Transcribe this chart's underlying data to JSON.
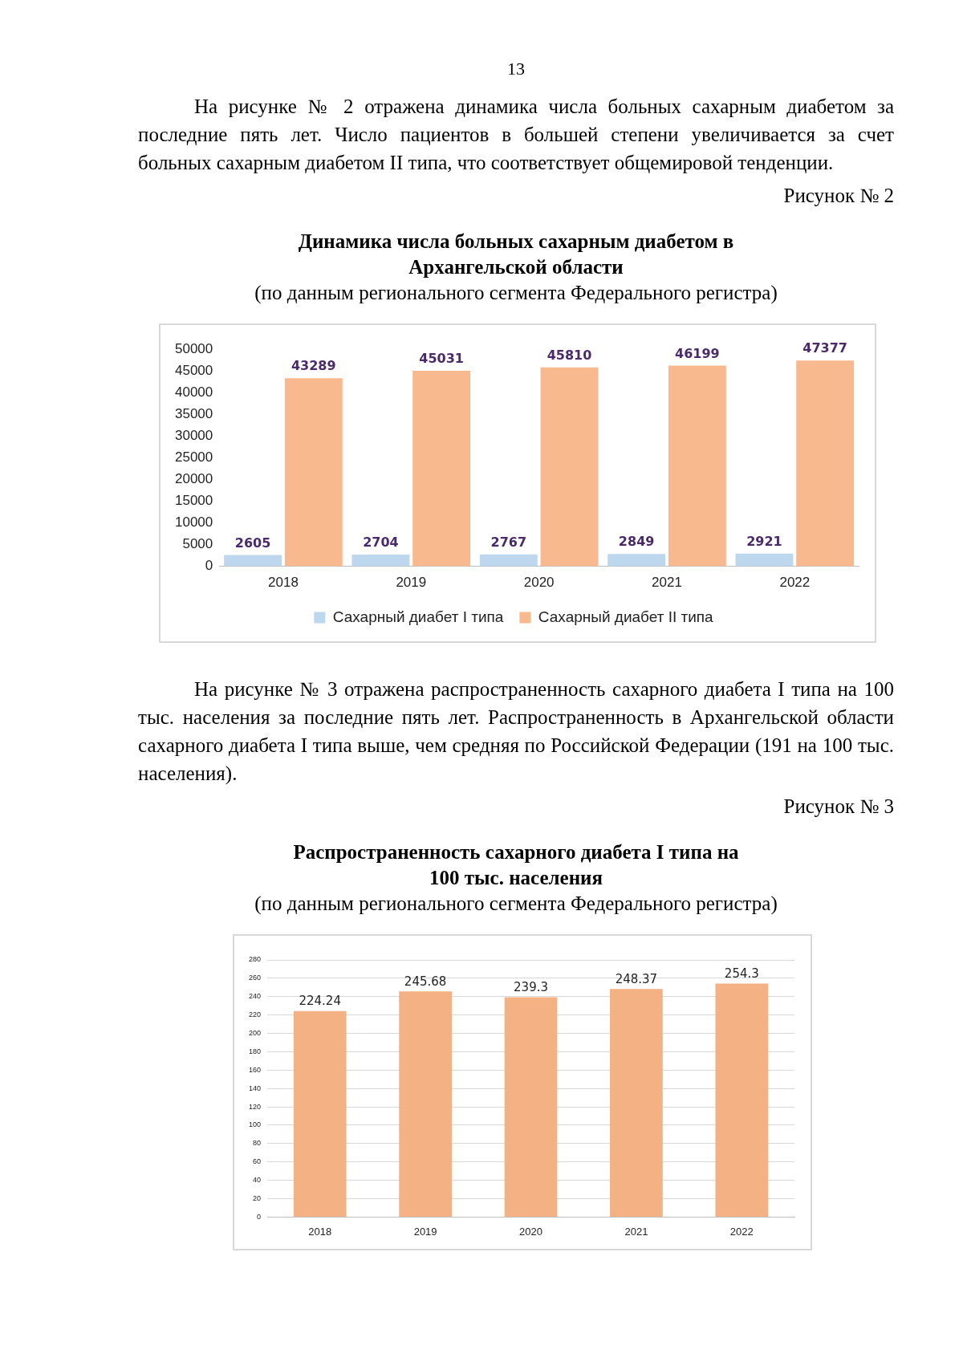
{
  "chart_data": [
    {
      "type": "bar",
      "title": "Динамика числа больных сахарным диабетом в Архангельской области",
      "subtitle": "(по данным регионального сегмента Федерального регистра)",
      "annotations": [
        "13",
        "На рисунке № 2 отражена динамика числа больных сахарным диабетом за последние пять лет. Число пациентов в большей степени увеличивается за счет больных сахарным диабетом II типа, что соответствует общемировой тенденции.",
        "Рисунок № 2"
      ],
      "categories": [
        "2018",
        "2019",
        "2020",
        "2021",
        "2022"
      ],
      "series": [
        {
          "name": "Сахарный диабет I типа",
          "color": "#bdd7ee",
          "values": [
            2605,
            2704,
            2767,
            2849,
            2921
          ]
        },
        {
          "name": "Сахарный диабет II типа",
          "color": "#f8b98f",
          "values": [
            43289,
            45031,
            45810,
            46199,
            47377
          ]
        }
      ],
      "ylim": [
        0,
        50000
      ],
      "yticks": [
        0,
        5000,
        10000,
        15000,
        20000,
        25000,
        30000,
        35000,
        40000,
        45000,
        50000
      ],
      "grid": false,
      "legend": "bottom",
      "data_labels": true
    },
    {
      "type": "bar",
      "title": "Распространенность сахарного диабета I типа на 100 тыс. населения",
      "subtitle": "(по данным регионального сегмента Федерального регистра)",
      "annotations": [
        "На рисунке № 3 отражена распространенность сахарного диабета I типа на 100 тыс. населения за последние пять лет. Распространенность в Архангельской области сахарного диабета I типа выше, чем средняя по Российской Федерации (191 на 100 тыс. населения).",
        "Рисунок № 3"
      ],
      "categories": [
        "2018",
        "2019",
        "2020",
        "2021",
        "2022"
      ],
      "values": [
        224.24,
        245.68,
        239.3,
        248.37,
        254.3
      ],
      "color": "#f4b183",
      "ylim": [
        0,
        280
      ],
      "yticks": [
        0,
        20,
        40,
        60,
        80,
        100,
        120,
        140,
        160,
        180,
        200,
        220,
        240,
        260,
        280
      ],
      "grid": "y",
      "data_labels": true
    }
  ]
}
